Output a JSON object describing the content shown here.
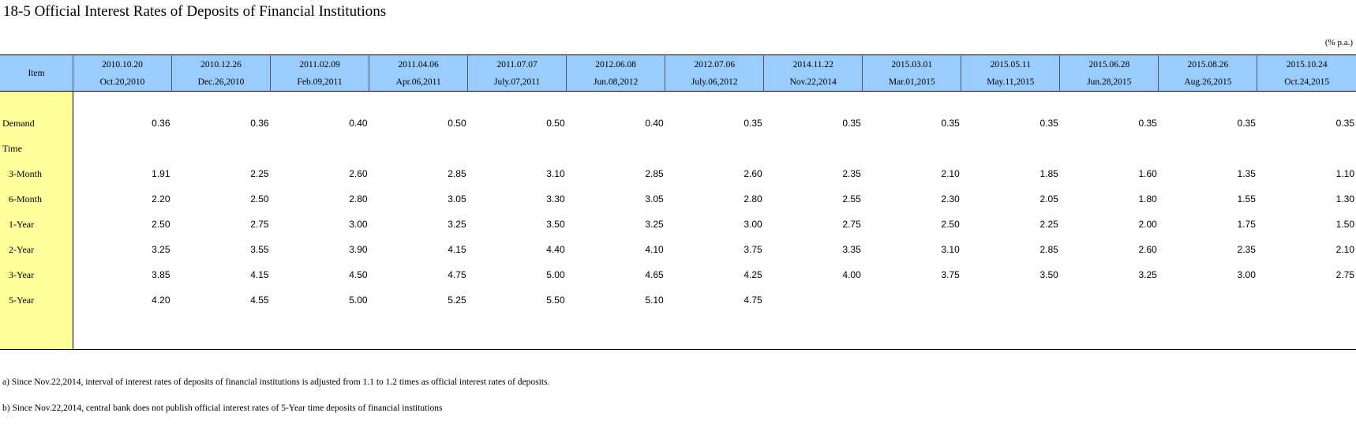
{
  "title": "18-5  Official Interest Rates of Deposits of Financial Institutions",
  "unit": "(% p.a.)",
  "item_header": "Item",
  "columns": [
    {
      "code": "2010.10.20",
      "date": "Oct.20,2010"
    },
    {
      "code": "2010.12.26",
      "date": "Dec.26,2010"
    },
    {
      "code": "2011.02.09",
      "date": "Feb.09,2011"
    },
    {
      "code": "2011.04.06",
      "date": "Apr.06,2011"
    },
    {
      "code": "2011.07.07",
      "date": "July.07,2011"
    },
    {
      "code": "2012.06.08",
      "date": "Jun.08,2012"
    },
    {
      "code": "2012.07.06",
      "date": "July.06,2012"
    },
    {
      "code": "2014.11.22",
      "date": "Nov.22,2014"
    },
    {
      "code": "2015.03.01",
      "date": "Mar.01,2015"
    },
    {
      "code": "2015.05.11",
      "date": "May.11,2015"
    },
    {
      "code": "2015.06.28",
      "date": "Jun.28,2015"
    },
    {
      "code": "2015.08.26",
      "date": "Aug.26,2015"
    },
    {
      "code": "2015.10.24",
      "date": "Oct.24,2015"
    }
  ],
  "rows": [
    {
      "label": "Demand",
      "values": [
        "0.36",
        "0.36",
        "0.40",
        "0.50",
        "0.50",
        "0.40",
        "0.35",
        "0.35",
        "0.35",
        "0.35",
        "0.35",
        "0.35",
        "0.35"
      ]
    },
    {
      "label": "Time",
      "values": [
        "",
        "",
        "",
        "",
        "",
        "",
        "",
        "",
        "",
        "",
        "",
        "",
        ""
      ]
    },
    {
      "label": "3-Month",
      "values": [
        "1.91",
        "2.25",
        "2.60",
        "2.85",
        "3.10",
        "2.85",
        "2.60",
        "2.35",
        "2.10",
        "1.85",
        "1.60",
        "1.35",
        "1.10"
      ]
    },
    {
      "label": "6-Month",
      "values": [
        "2.20",
        "2.50",
        "2.80",
        "3.05",
        "3.30",
        "3.05",
        "2.80",
        "2.55",
        "2.30",
        "2.05",
        "1.80",
        "1.55",
        "1.30"
      ]
    },
    {
      "label": "1-Year",
      "values": [
        "2.50",
        "2.75",
        "3.00",
        "3.25",
        "3.50",
        "3.25",
        "3.00",
        "2.75",
        "2.50",
        "2.25",
        "2.00",
        "1.75",
        "1.50"
      ]
    },
    {
      "label": "2-Year",
      "values": [
        "3.25",
        "3.55",
        "3.90",
        "4.15",
        "4.40",
        "4.10",
        "3.75",
        "3.35",
        "3.10",
        "2.85",
        "2.60",
        "2.35",
        "2.10"
      ]
    },
    {
      "label": "3-Year",
      "values": [
        "3.85",
        "4.15",
        "4.50",
        "4.75",
        "5.00",
        "4.65",
        "4.25",
        "4.00",
        "3.75",
        "3.50",
        "3.25",
        "3.00",
        "2.75"
      ]
    },
    {
      "label": "5-Year",
      "values": [
        "4.20",
        "4.55",
        "5.00",
        "5.25",
        "5.50",
        "5.10",
        "4.75",
        "",
        "",
        "",
        "",
        "",
        ""
      ]
    }
  ],
  "notes": [
    "a) Since Nov.22,2014, interval of interest rates of deposits of financial institutions is adjusted from 1.1 to 1.2 times as official interest rates of deposits.",
    "b) Since Nov.22,2014, central bank does not publish official interest rates of 5-Year time deposits of financial institutions"
  ]
}
